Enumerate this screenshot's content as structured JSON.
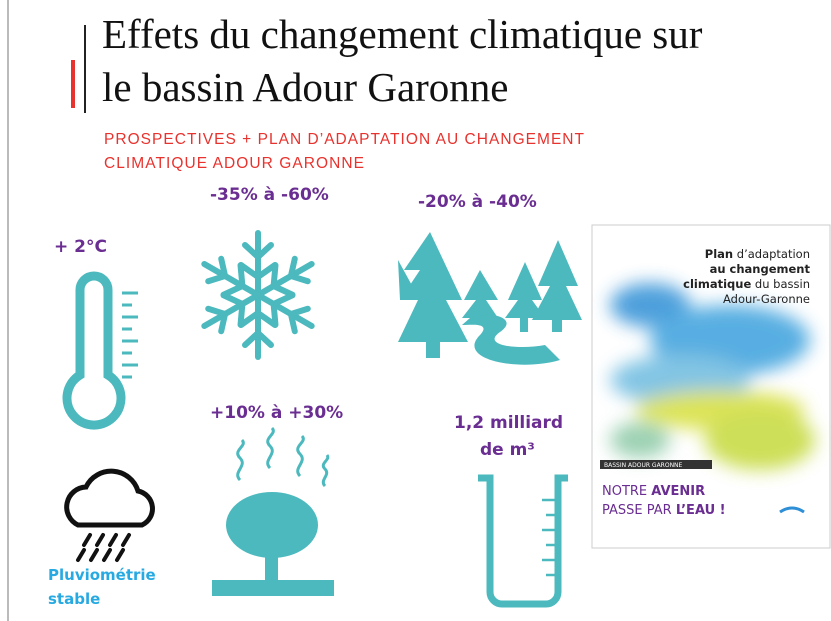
{
  "header": {
    "title_lines": [
      "Effets du changement climatique sur",
      "le bassin Adour Garonne"
    ],
    "subtitle_lines": [
      "PROSPECTIVES + PLAN D’ADAPTATION AU CHANGEMENT",
      "CLIMATIQUE ADOUR GARONNE"
    ]
  },
  "stats": {
    "temperature": "+ 2°C",
    "snow": "-35% à -60%",
    "rivers": "-20% à  -40%",
    "evaporation": "+10% à +30%",
    "water_lines": [
      "1,2 milliard",
      "de m³"
    ],
    "rain_lines": [
      "Pluviométrie",
      "stable"
    ]
  },
  "cover": {
    "heading": [
      [
        "Plan",
        " d’adaptation"
      ],
      [
        "au changement"
      ],
      [
        "climatique",
        " du bassin"
      ],
      [
        "Adour-Garonne"
      ]
    ],
    "label": "BASSIN ADOUR GARONNE",
    "slogan": [
      [
        "NOTRE ",
        "AVENIR"
      ],
      [
        "PASSE PAR ",
        "L’EAU !"
      ]
    ]
  }
}
